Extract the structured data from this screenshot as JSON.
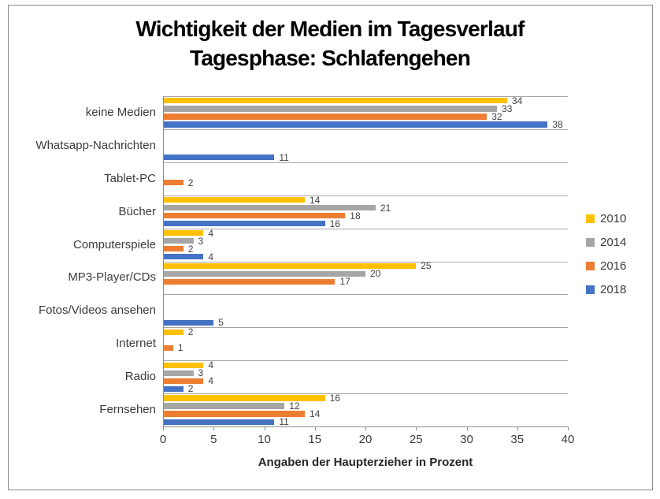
{
  "chart_data": {
    "type": "bar",
    "orientation": "horizontal",
    "title_lines": [
      "Wichtigkeit der Medien im Tagesverlauf",
      "Tagesphase: Schlafengehen"
    ],
    "xlabel": "Angaben der Haupterzieher in Prozent",
    "categories": [
      "keine Medien",
      "Whatsapp-Nachrichten",
      "Tablet-PC",
      "Bücher",
      "Computerspiele",
      "MP3-Player/CDs",
      "Fotos/Videos ansehen",
      "Internet",
      "Radio",
      "Fernsehen"
    ],
    "series": [
      {
        "name": "2010",
        "color": "#FFC000",
        "values": [
          34,
          null,
          null,
          14,
          4,
          25,
          null,
          2,
          4,
          16
        ]
      },
      {
        "name": "2014",
        "color": "#A6A6A6",
        "values": [
          33,
          null,
          null,
          21,
          3,
          20,
          null,
          null,
          3,
          12
        ]
      },
      {
        "name": "2016",
        "color": "#ED7D31",
        "values": [
          32,
          null,
          2,
          18,
          2,
          17,
          null,
          1,
          4,
          14
        ]
      },
      {
        "name": "2018",
        "color": "#4472C4",
        "values": [
          38,
          11,
          null,
          16,
          4,
          null,
          5,
          null,
          2,
          11
        ]
      }
    ],
    "xlim": [
      0,
      40
    ],
    "xticks": [
      0,
      5,
      10,
      15,
      20,
      25,
      30,
      35,
      40
    ],
    "legend": {
      "position": "right",
      "entries": [
        "2010",
        "2014",
        "2016",
        "2018"
      ]
    },
    "grid": "horizontal lines at category boundaries",
    "gridline_color": "#a6a6a6",
    "axis_color": "#8c8c8c",
    "data_label_color": "#404040"
  }
}
